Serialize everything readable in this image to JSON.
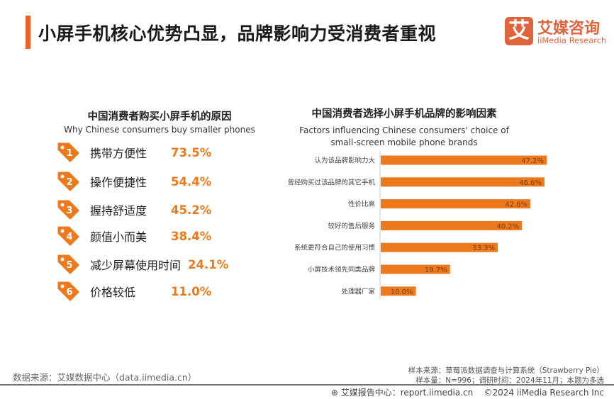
{
  "header": {
    "title": "小屏手机核心优势凸显，品牌影响力受消费者重视",
    "accent_color": "#e8612c"
  },
  "logo": {
    "mark": "艾",
    "name_cn": "艾媒咨询",
    "name_en": "iiMedia Research"
  },
  "left_panel": {
    "title_cn": "中国消费者购买小屏手机的原因",
    "title_en": "Why Chinese consumers buy smaller phones",
    "items": [
      {
        "rank": "1",
        "label": "携带方便性",
        "value": "73.5%"
      },
      {
        "rank": "2",
        "label": "操作便捷性",
        "value": "54.4%"
      },
      {
        "rank": "3",
        "label": "握持舒适度",
        "value": "45.2%"
      },
      {
        "rank": "4",
        "label": "颜值小而美",
        "value": "38.4%"
      },
      {
        "rank": "5",
        "label": "减少屏幕使用时间",
        "value": "24.1%"
      },
      {
        "rank": "6",
        "label": "价格较低",
        "value": "11.0%"
      }
    ],
    "icon": "tag-icon"
  },
  "chart_data": {
    "type": "bar",
    "orientation": "horizontal",
    "title": "中国消费者选择小屏手机品牌的影响因素",
    "subtitle": "Factors influencing Chinese consumers' choice of small-screen mobile phone brands",
    "categories": [
      "认为该品牌影响力大",
      "曾经购买过该品牌的其它手机",
      "性价比高",
      "较好的售后服务",
      "系统更符合自己的使用习惯",
      "小屏技术领先同类品牌",
      "处理器厂家"
    ],
    "values": [
      47.2,
      46.6,
      42.6,
      40.2,
      33.3,
      19.7,
      10.0
    ],
    "labels": [
      "47.2%",
      "46.6%",
      "42.6%",
      "40.2%",
      "33.3%",
      "19.7%",
      "10.0%"
    ],
    "unit": "%",
    "bar_color": "#ec7a1c",
    "grid": false
  },
  "footer": {
    "source": "数据来源：艾媒数据中心（data.iimedia.cn）",
    "sample_source": "样本来源：草莓派数据调查与计算系统（Strawberry Pie）",
    "sample_info": "样本量：N=996；调研时间：2024年11月；本题为多选",
    "report_center": "艾媒报告中心：report.iimedia.cn",
    "copyright": "©2024  iiMedia Research  Inc"
  }
}
